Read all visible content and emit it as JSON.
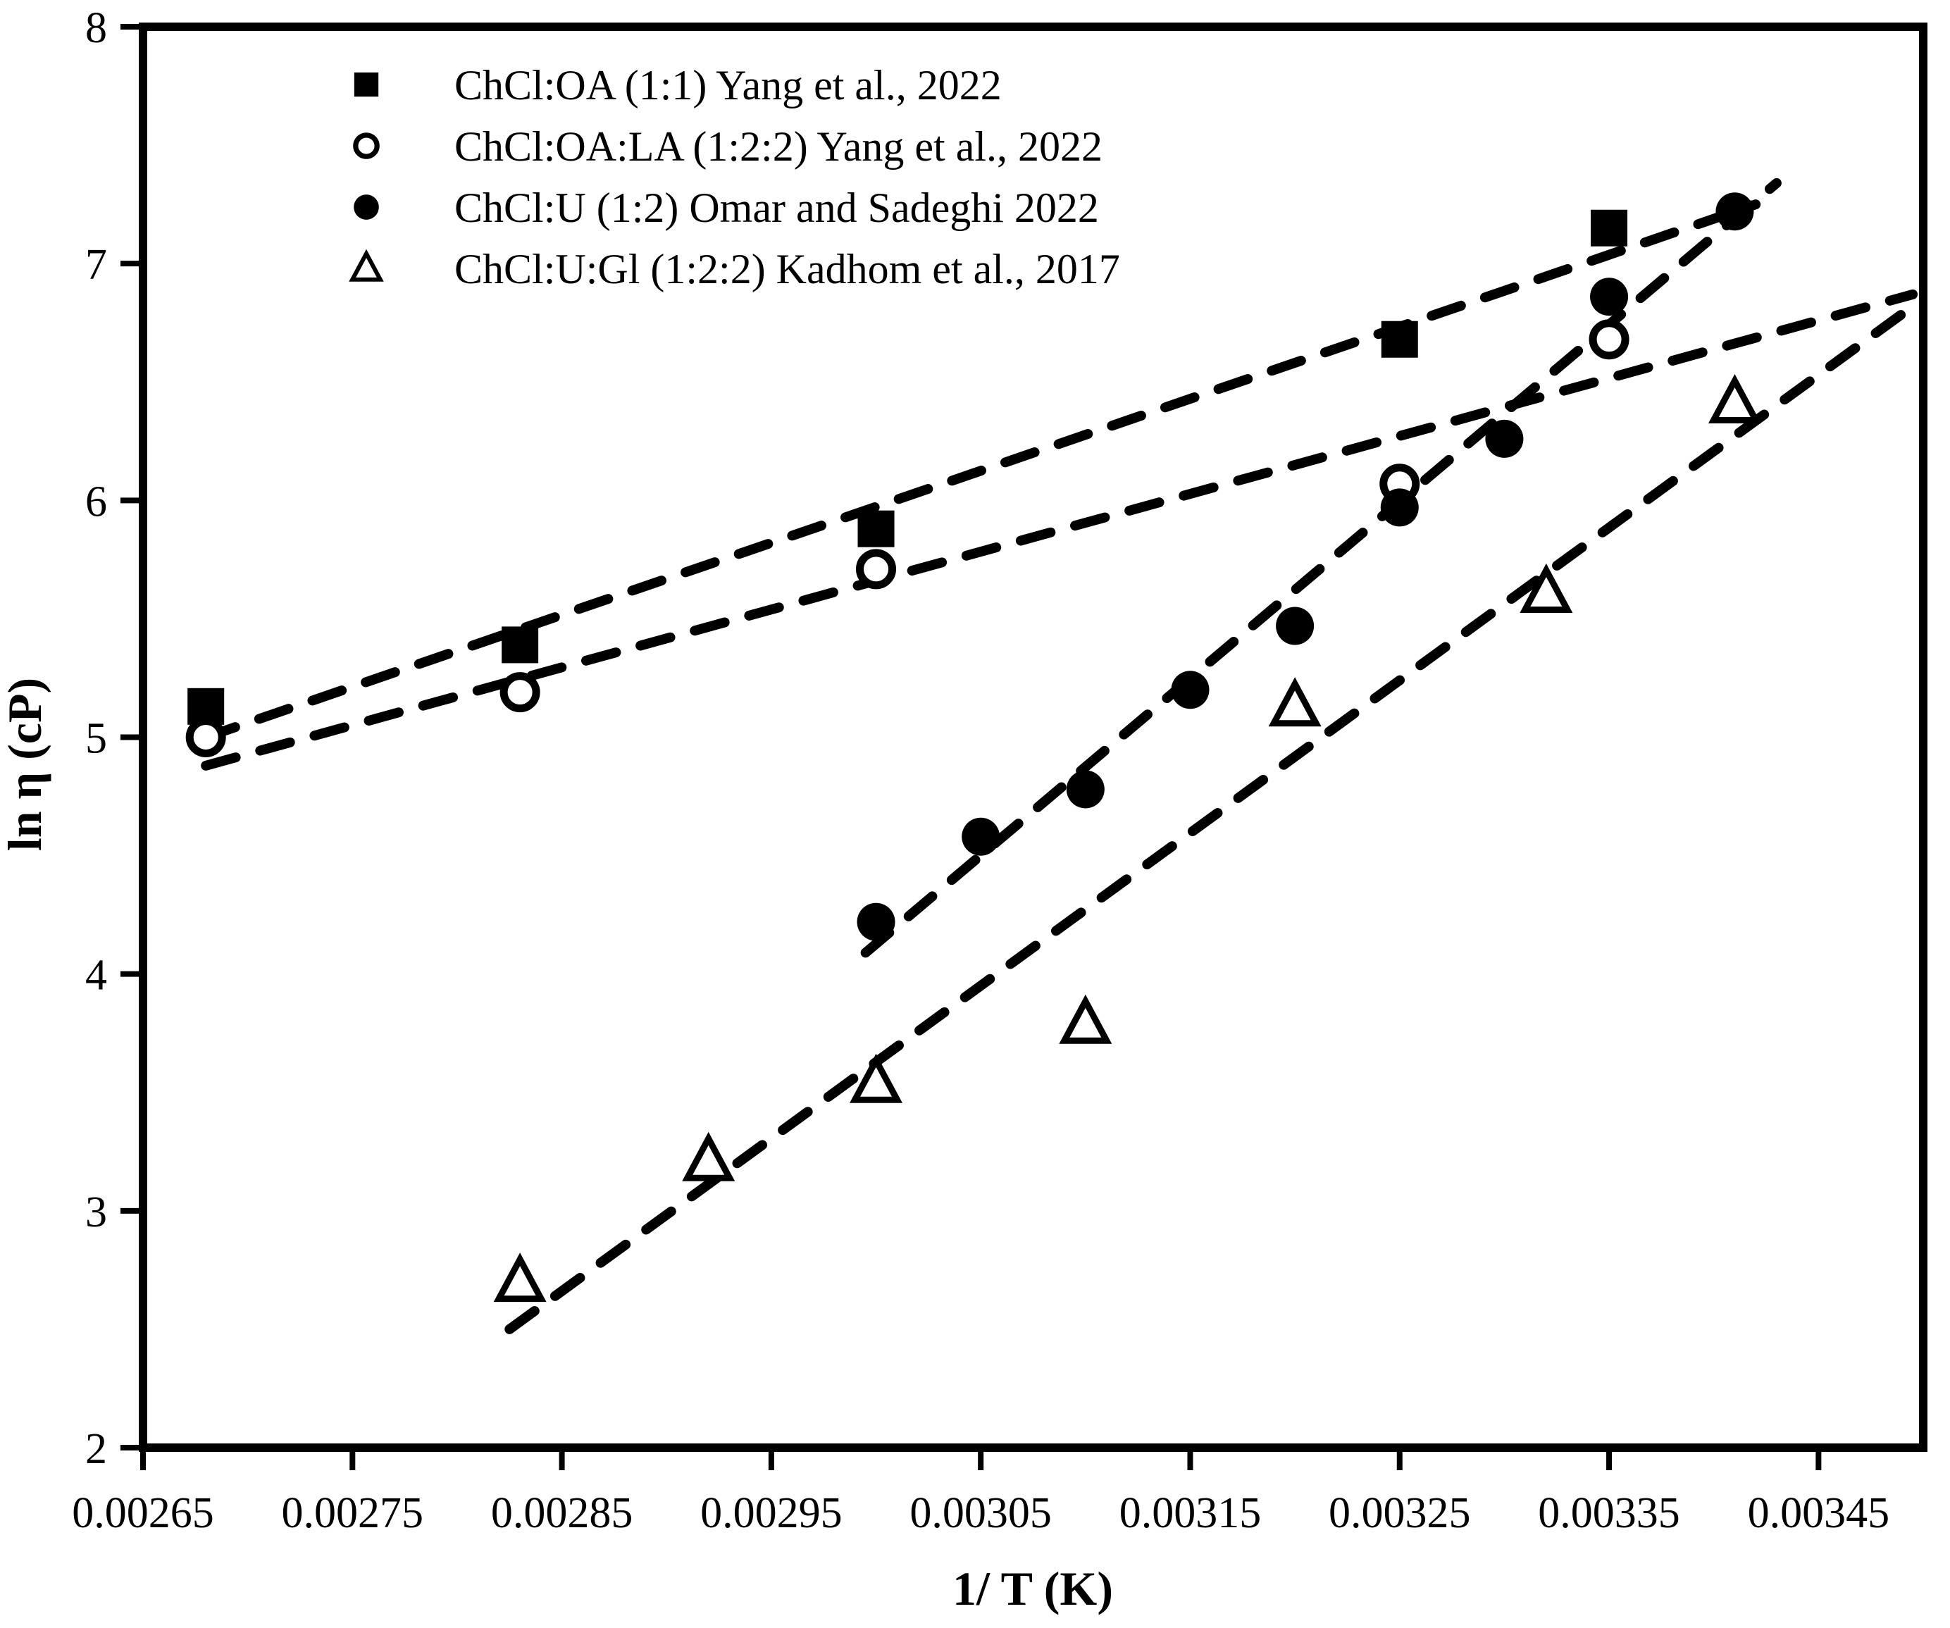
{
  "page": {
    "background": "#ffffff",
    "foreground": "#000000"
  },
  "chart_data": {
    "type": "scatter",
    "title": "",
    "xlabel": "1/ T (K)",
    "ylabel": "ln η (cP)",
    "xlim": [
      0.00265,
      0.0035
    ],
    "ylim": [
      2,
      8
    ],
    "grid": false,
    "legend_position": "top-left-inside",
    "axis_color": "#000000",
    "x_ticks": {
      "values": [
        0.00265,
        0.00275,
        0.00285,
        0.00295,
        0.00305,
        0.00315,
        0.00325,
        0.00335,
        0.00345
      ],
      "labels": [
        "0.00265",
        "0.00275",
        "0.00285",
        "0.00295",
        "0.00305",
        "0.00315",
        "0.00325",
        "0.00335",
        "0.00345"
      ]
    },
    "y_ticks": {
      "values": [
        2,
        3,
        4,
        5,
        6,
        7,
        8
      ],
      "labels": [
        "2",
        "3",
        "4",
        "5",
        "6",
        "7",
        "8"
      ]
    },
    "series": [
      {
        "name": "ChCl:OA (1:1) Yang et al., 2022",
        "marker": "filled-square",
        "color": "#000000",
        "points": [
          [
            0.00268,
            5.13
          ],
          [
            0.00283,
            5.39
          ],
          [
            0.003,
            5.88
          ],
          [
            0.00325,
            6.68
          ],
          [
            0.00335,
            7.15
          ]
        ],
        "trendline": {
          "style": "dashed",
          "x1": 0.00268,
          "y1": 5.0,
          "x2": 0.00342,
          "y2": 7.25
        }
      },
      {
        "name": "ChCl:OA:LA (1:2:2) Yang et al., 2022",
        "marker": "open-circle",
        "color": "#000000",
        "points": [
          [
            0.00268,
            5.0
          ],
          [
            0.00283,
            5.19
          ],
          [
            0.003,
            5.71
          ],
          [
            0.00325,
            6.07
          ],
          [
            0.00335,
            6.68
          ]
        ],
        "trendline": {
          "style": "dashed",
          "x1": 0.00268,
          "y1": 4.88,
          "x2": 0.003495,
          "y2": 6.87
        }
      },
      {
        "name": "ChCl:U (1:2) Omar and Sadeghi 2022",
        "marker": "filled-circle",
        "color": "#000000",
        "points": [
          [
            0.003,
            4.22
          ],
          [
            0.00305,
            4.58
          ],
          [
            0.0031,
            4.78
          ],
          [
            0.00315,
            5.2
          ],
          [
            0.0032,
            5.47
          ],
          [
            0.00325,
            5.97
          ],
          [
            0.0033,
            6.26
          ],
          [
            0.00335,
            6.86
          ],
          [
            0.00341,
            7.22
          ]
        ],
        "trendline": {
          "style": "dashed",
          "x1": 0.002995,
          "y1": 4.09,
          "x2": 0.00343,
          "y2": 7.34
        }
      },
      {
        "name": "ChCl:U:Gl (1:2:2) Kadhom et al., 2017",
        "marker": "open-triangle",
        "color": "#000000",
        "points": [
          [
            0.00283,
            2.7
          ],
          [
            0.00292,
            3.21
          ],
          [
            0.003,
            3.54
          ],
          [
            0.0031,
            3.79
          ],
          [
            0.0032,
            5.13
          ],
          [
            0.00332,
            5.61
          ],
          [
            0.00341,
            6.41
          ]
        ],
        "trendline": {
          "style": "dashed",
          "x1": 0.002825,
          "y1": 2.5,
          "x2": 0.003495,
          "y2": 6.82
        }
      }
    ]
  }
}
